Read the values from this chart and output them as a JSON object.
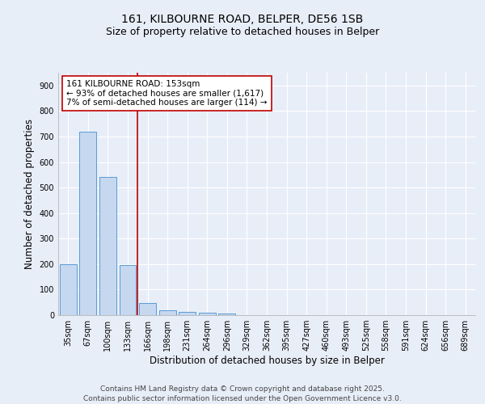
{
  "title_line1": "161, KILBOURNE ROAD, BELPER, DE56 1SB",
  "title_line2": "Size of property relative to detached houses in Belper",
  "xlabel": "Distribution of detached houses by size in Belper",
  "ylabel": "Number of detached properties",
  "categories": [
    "35sqm",
    "67sqm",
    "100sqm",
    "133sqm",
    "166sqm",
    "198sqm",
    "231sqm",
    "264sqm",
    "296sqm",
    "329sqm",
    "362sqm",
    "395sqm",
    "427sqm",
    "460sqm",
    "493sqm",
    "525sqm",
    "558sqm",
    "591sqm",
    "624sqm",
    "656sqm",
    "689sqm"
  ],
  "values": [
    200,
    718,
    541,
    197,
    46,
    20,
    14,
    10,
    6,
    0,
    0,
    0,
    0,
    0,
    0,
    0,
    0,
    0,
    0,
    0,
    0
  ],
  "bar_color": "#c5d8f0",
  "bar_edge_color": "#5b9bd5",
  "vline_color": "#c00000",
  "vline_xindex": 3.5,
  "annotation_text": "161 KILBOURNE ROAD: 153sqm\n← 93% of detached houses are smaller (1,617)\n7% of semi-detached houses are larger (114) →",
  "annotation_box_facecolor": "#ffffff",
  "annotation_box_edgecolor": "#c00000",
  "ylim": [
    0,
    950
  ],
  "yticks": [
    0,
    100,
    200,
    300,
    400,
    500,
    600,
    700,
    800,
    900
  ],
  "background_color": "#e8eef8",
  "plot_bg_color": "#e8eef8",
  "grid_color": "#ffffff",
  "footer_line1": "Contains HM Land Registry data © Crown copyright and database right 2025.",
  "footer_line2": "Contains public sector information licensed under the Open Government Licence v3.0.",
  "title_fontsize": 10,
  "subtitle_fontsize": 9,
  "axis_label_fontsize": 8.5,
  "tick_fontsize": 7,
  "annotation_fontsize": 7.5,
  "footer_fontsize": 6.5
}
